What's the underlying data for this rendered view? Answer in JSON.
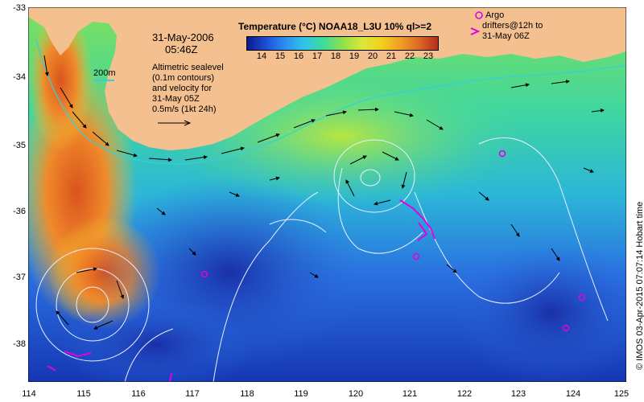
{
  "map": {
    "datetime_line1": "31-May-2006",
    "datetime_line2": "05:46Z",
    "contour_label": "200m",
    "sealevel_lines": [
      "Altimetric sealevel",
      "(0.1m contours)",
      "and velocity for",
      "31-May 05Z",
      "0.5m/s (1kt 24h)"
    ],
    "colorbar": {
      "title": "Temperature (°C) NOAA18_L3U 10% ql>=2",
      "ticks": [
        "14",
        "15",
        "16",
        "17",
        "18",
        "19",
        "20",
        "21",
        "22",
        "23"
      ],
      "colors": [
        "#0a1a8c",
        "#1e4fd6",
        "#2c8ff0",
        "#2fc6e6",
        "#3ddc9a",
        "#8fe04a",
        "#d8e83a",
        "#f2d21e",
        "#f0a028",
        "#dd6a22",
        "#b22e1e"
      ]
    },
    "legend": {
      "argo_lines": [
        "Argo",
        "drifters@12h to",
        "31-May 06Z"
      ]
    },
    "x_ticks": [
      "114",
      "115",
      "116",
      "117",
      "118",
      "119",
      "120",
      "121",
      "122",
      "123",
      "124",
      "125"
    ],
    "y_ticks": [
      "-33",
      "-34",
      "-35",
      "-36",
      "-37",
      "-38"
    ],
    "credit": "© IMOS 03-Apr-2015 07:07:14 Hobart time",
    "colors": {
      "land": "#f5c08f",
      "contour": "#d9e8ff",
      "isobath": "#36d0d8",
      "argo_marker": "#e000e0"
    }
  }
}
